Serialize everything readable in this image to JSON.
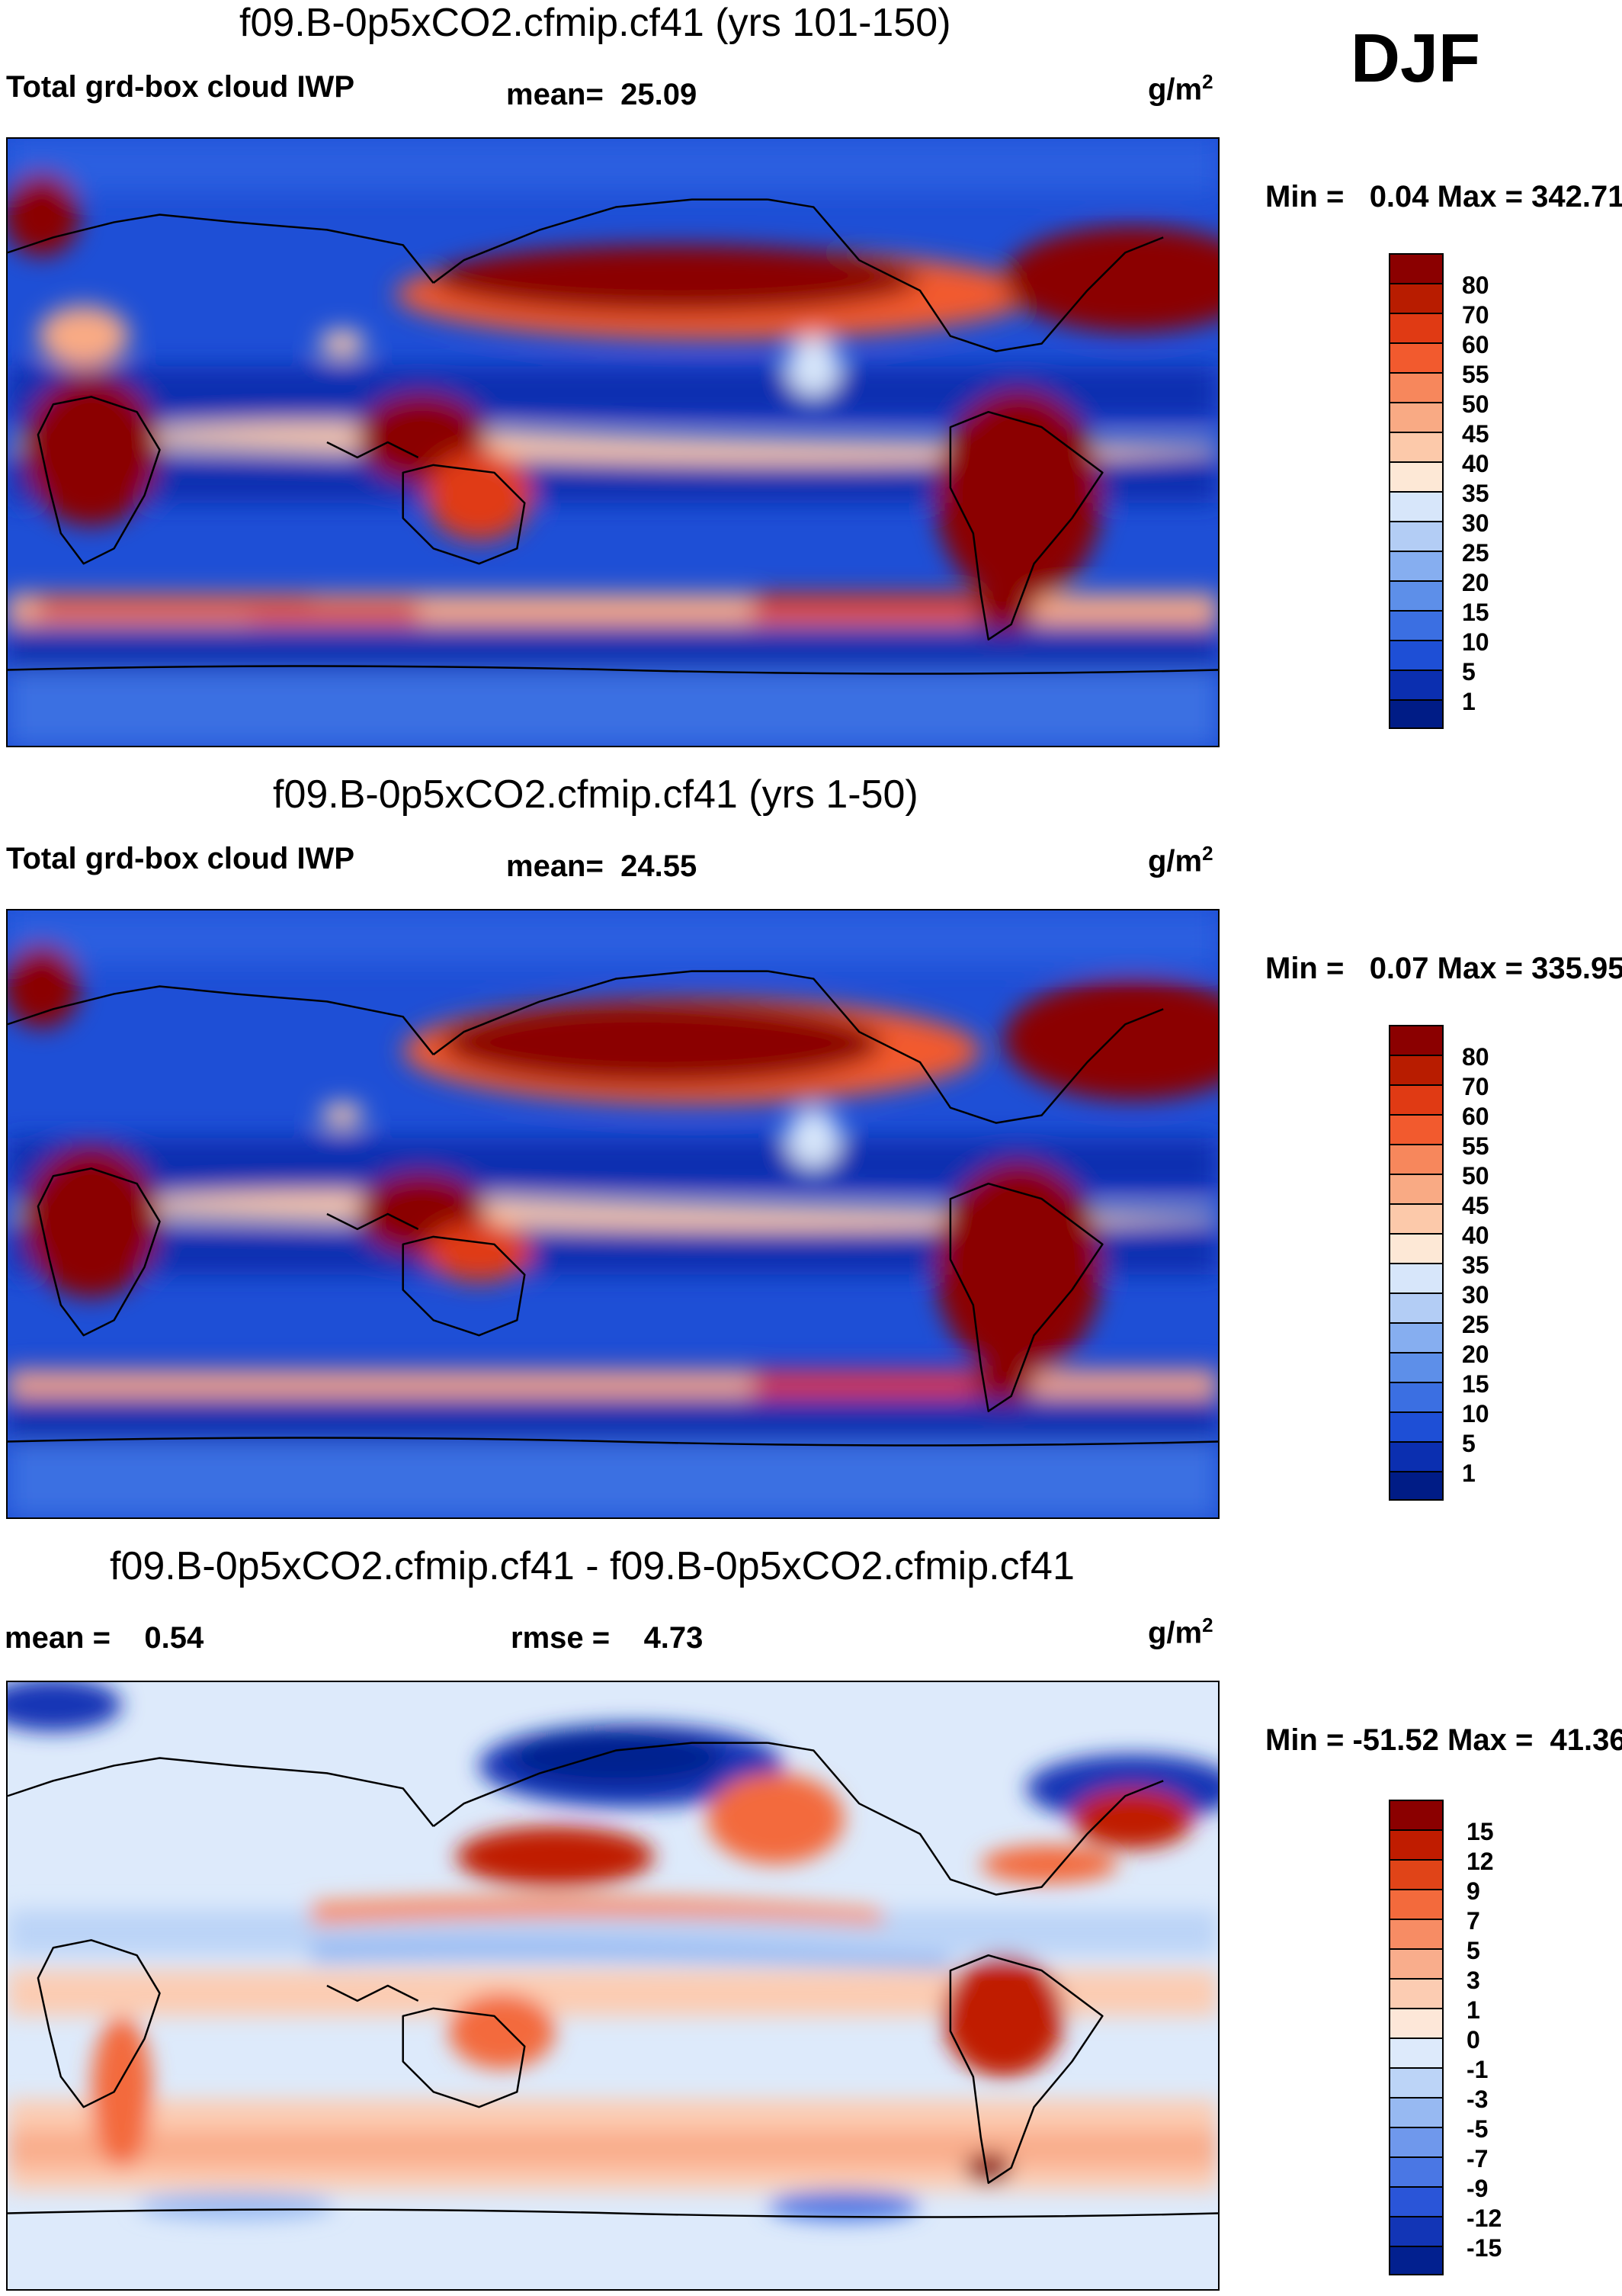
{
  "season": "DJF",
  "chart_data": [
    {
      "type": "heatmap",
      "title": "f09.B-0p5xCO2.cfmip.cf41 (yrs 101-150)",
      "variable": "Total grd-box cloud IWP",
      "mean_label": "mean=",
      "mean": "25.09",
      "units_base": "g/m",
      "units_exp": "2",
      "min_label": "Min =",
      "min": "0.04",
      "max_label": "Max =",
      "max": "342.71",
      "colorbar_levels": [
        "80",
        "70",
        "60",
        "55",
        "50",
        "45",
        "40",
        "35",
        "30",
        "25",
        "20",
        "15",
        "10",
        "5",
        "1"
      ],
      "colorbar_colors": [
        "#8b0000",
        "#b81c00",
        "#e03a14",
        "#f25a2e",
        "#f7875c",
        "#f9aa84",
        "#fcc9aa",
        "#fde8d6",
        "#d7e6fa",
        "#b3cdf5",
        "#86aef0",
        "#5d8fe9",
        "#3b6fe2",
        "#1e4fd6",
        "#0b2fb0",
        "#001c86"
      ]
    },
    {
      "type": "heatmap",
      "title": "f09.B-0p5xCO2.cfmip.cf41 (yrs 1-50)",
      "variable": "Total grd-box cloud IWP",
      "mean_label": "mean=",
      "mean": "24.55",
      "units_base": "g/m",
      "units_exp": "2",
      "min_label": "Min =",
      "min": "0.07",
      "max_label": "Max =",
      "max": "335.95",
      "colorbar_levels": [
        "80",
        "70",
        "60",
        "55",
        "50",
        "45",
        "40",
        "35",
        "30",
        "25",
        "20",
        "15",
        "10",
        "5",
        "1"
      ],
      "colorbar_colors": [
        "#8b0000",
        "#b81c00",
        "#e03a14",
        "#f25a2e",
        "#f7875c",
        "#f9aa84",
        "#fcc9aa",
        "#fde8d6",
        "#d7e6fa",
        "#b3cdf5",
        "#86aef0",
        "#5d8fe9",
        "#3b6fe2",
        "#1e4fd6",
        "#0b2fb0",
        "#001c86"
      ]
    },
    {
      "type": "heatmap",
      "title": "f09.B-0p5xCO2.cfmip.cf41 - f09.B-0p5xCO2.cfmip.cf41",
      "mean_label": "mean =",
      "mean": "0.54",
      "rmse_label": "rmse =",
      "rmse": "4.73",
      "units_base": "g/m",
      "units_exp": "2",
      "min_label": "Min =",
      "min": "-51.52",
      "max_label": "Max =",
      "max": "41.36",
      "colorbar_levels": [
        "15",
        "12",
        "9",
        "7",
        "5",
        "3",
        "1",
        "0",
        "-1",
        "-3",
        "-5",
        "-7",
        "-9",
        "-12",
        "-15"
      ],
      "colorbar_colors": [
        "#8b0000",
        "#c01c00",
        "#e04418",
        "#f36a3c",
        "#f78c64",
        "#f9ad8c",
        "#fcccb2",
        "#fde7d8",
        "#ddeafb",
        "#bcd4f7",
        "#97b9f2",
        "#6f98ec",
        "#4a77e4",
        "#2a55d8",
        "#1235b6",
        "#02208f"
      ]
    }
  ]
}
